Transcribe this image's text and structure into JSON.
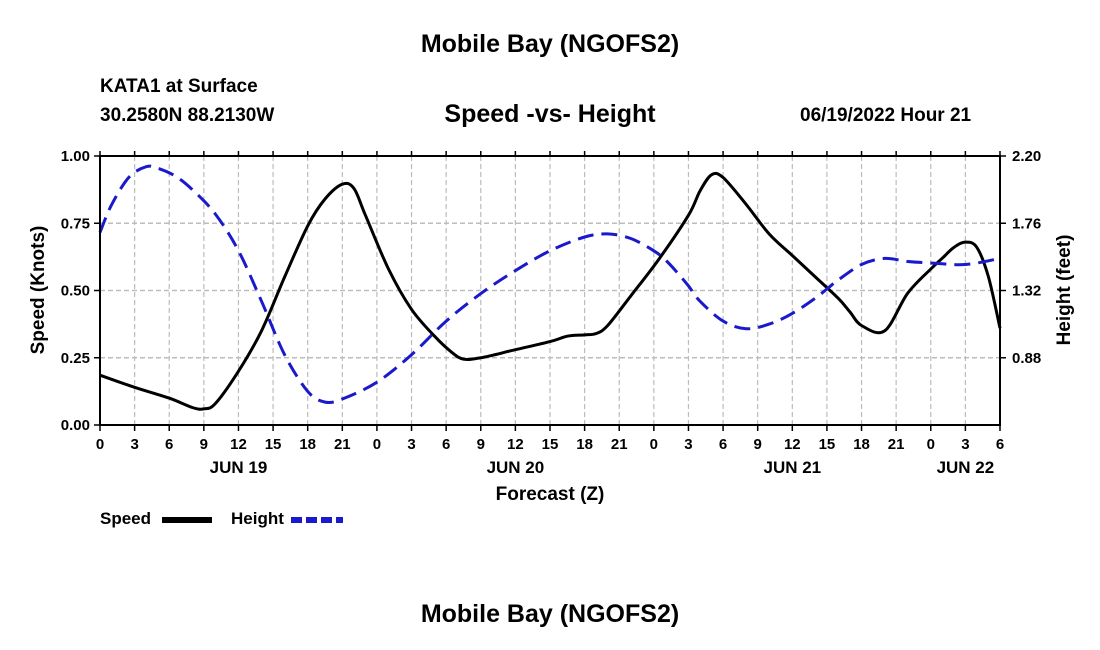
{
  "header": {
    "title": "Mobile Bay (NGOFS2)",
    "station": "KATA1 at Surface",
    "coordinates": "30.2580N  88.2130W",
    "chart_title": "Speed -vs- Height",
    "datetime": "06/19/2022 Hour 21"
  },
  "footer": {
    "title": "Mobile Bay (NGOFS2)"
  },
  "legend": {
    "speed_label": "Speed",
    "height_label": "Height"
  },
  "colors": {
    "speed": "#000000",
    "height": "#1a1acc",
    "grid": "#bbbbbb"
  },
  "chart_data": {
    "type": "line",
    "title": "Speed -vs- Height",
    "xlabel": "Forecast (Z)",
    "ylabel": "Speed (Knots)",
    "y2label": "Height (feet)",
    "x_unit": "hours since JUN 19 00Z",
    "xlim": [
      0,
      78
    ],
    "ylim": [
      0,
      1.0
    ],
    "y2lim": [
      0.44,
      2.2
    ],
    "x_ticks": [
      0,
      3,
      6,
      9,
      12,
      15,
      18,
      21,
      24,
      27,
      30,
      33,
      36,
      39,
      42,
      45,
      48,
      51,
      54,
      57,
      60,
      63,
      66,
      69,
      72,
      75,
      78
    ],
    "x_tick_labels": [
      "0",
      "3",
      "6",
      "9",
      "12",
      "15",
      "18",
      "21",
      "0",
      "3",
      "6",
      "9",
      "12",
      "15",
      "18",
      "21",
      "0",
      "3",
      "6",
      "9",
      "12",
      "15",
      "18",
      "21",
      "0",
      "3",
      "6"
    ],
    "date_labels": [
      {
        "x": 12,
        "label": "JUN 19"
      },
      {
        "x": 36,
        "label": "JUN 20"
      },
      {
        "x": 60,
        "label": "JUN 21"
      },
      {
        "x": 75,
        "label": "JUN 22"
      }
    ],
    "y_ticks": [
      0.0,
      0.25,
      0.5,
      0.75,
      1.0
    ],
    "y_tick_labels": [
      "0.00",
      "0.25",
      "0.50",
      "0.75",
      "1.00"
    ],
    "y2_ticks": [
      0.88,
      1.32,
      1.76,
      2.2
    ],
    "y2_tick_labels": [
      "0.88",
      "1.32",
      "1.76",
      "2.20"
    ],
    "grid": true,
    "series": [
      {
        "name": "Speed",
        "axis": "left",
        "style": "solid",
        "x": [
          0,
          3,
          6,
          8,
          9,
          10,
          12,
          14,
          16,
          18,
          19.5,
          21,
          22,
          23,
          25,
          27,
          29,
          30.5,
          31.5,
          33,
          36,
          39,
          40.5,
          42,
          43,
          44,
          46,
          48.5,
          51,
          52,
          53,
          54,
          56,
          58,
          60,
          62,
          64,
          65,
          66,
          68,
          70,
          72,
          73,
          74,
          75,
          76,
          77,
          78
        ],
        "values": [
          0.185,
          0.14,
          0.1,
          0.065,
          0.06,
          0.08,
          0.2,
          0.35,
          0.55,
          0.74,
          0.84,
          0.895,
          0.88,
          0.78,
          0.58,
          0.43,
          0.33,
          0.27,
          0.245,
          0.25,
          0.28,
          0.31,
          0.33,
          0.335,
          0.34,
          0.37,
          0.48,
          0.62,
          0.78,
          0.87,
          0.93,
          0.92,
          0.82,
          0.71,
          0.63,
          0.55,
          0.47,
          0.42,
          0.37,
          0.35,
          0.49,
          0.58,
          0.62,
          0.66,
          0.68,
          0.66,
          0.55,
          0.36
        ]
      },
      {
        "name": "Height",
        "axis": "right",
        "style": "dashed",
        "x": [
          0,
          1,
          2.5,
          4,
          5,
          6.5,
          8,
          10,
          12,
          14,
          16,
          18,
          19.5,
          21,
          24,
          27,
          30,
          33,
          36,
          39,
          42,
          44,
          46,
          48,
          49,
          50,
          51,
          52,
          54,
          56,
          58,
          60,
          62,
          63,
          64,
          66,
          68,
          70,
          72,
          75,
          78
        ],
        "values": [
          1.7,
          1.88,
          2.06,
          2.13,
          2.12,
          2.07,
          1.98,
          1.82,
          1.58,
          1.25,
          0.9,
          0.66,
          0.59,
          0.61,
          0.72,
          0.9,
          1.12,
          1.3,
          1.45,
          1.58,
          1.67,
          1.69,
          1.66,
          1.58,
          1.52,
          1.44,
          1.35,
          1.25,
          1.12,
          1.07,
          1.1,
          1.17,
          1.27,
          1.33,
          1.39,
          1.49,
          1.53,
          1.51,
          1.5,
          1.49,
          1.53
        ]
      }
    ]
  }
}
